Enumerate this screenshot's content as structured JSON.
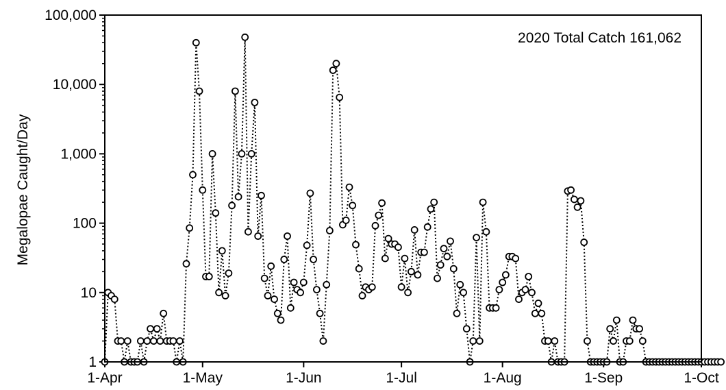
{
  "chart_data": {
    "type": "line",
    "title": "",
    "xlabel": "",
    "ylabel": "Megalopae Caught/Day",
    "y_scale": "log",
    "ylim": [
      1,
      100000
    ],
    "xlim": [
      "2020-04-01",
      "2020-10-01"
    ],
    "grid": false,
    "line_style": "dotted",
    "marker": "open-circle",
    "annotation": "2020 Total Catch 161,062",
    "x_ticks": [
      "1-Apr",
      "1-May",
      "1-Jun",
      "1-Jul",
      "1-Aug",
      "1-Sep",
      "1-Oct"
    ],
    "y_ticks": [
      "1",
      "10",
      "100",
      "1,000",
      "10,000",
      "100,000"
    ],
    "series": [
      {
        "start_date": "2020-04-01",
        "values": [
          1,
          10,
          9,
          8,
          2,
          2,
          1,
          2,
          1,
          1,
          1,
          2,
          1,
          2,
          3,
          2,
          3,
          2,
          5,
          2,
          2,
          2,
          1,
          2,
          1,
          26,
          85,
          500,
          40000,
          8000,
          300,
          17,
          17,
          1000,
          140,
          10,
          40,
          9,
          19,
          180,
          8000,
          240,
          1000,
          48000,
          75,
          1000,
          5500,
          65,
          250,
          16,
          9,
          24,
          8,
          5,
          4,
          30,
          65,
          6,
          14,
          11,
          10,
          14,
          48,
          270,
          30,
          11,
          5,
          2,
          13,
          78,
          16000,
          20000,
          6500,
          95,
          110,
          330,
          180,
          49,
          22,
          9,
          12,
          11,
          12,
          92,
          130,
          195,
          31,
          60,
          50,
          50,
          45,
          12,
          31,
          10,
          20,
          80,
          18,
          38,
          38,
          88,
          160,
          200,
          16,
          25,
          43,
          33,
          55,
          22,
          5,
          13,
          10,
          3,
          1,
          2,
          62,
          2,
          200,
          75,
          6,
          6,
          6,
          11,
          14,
          18,
          33,
          33,
          31,
          8,
          10,
          11,
          17,
          10,
          5,
          7,
          5,
          2,
          2,
          1,
          2,
          1,
          1,
          1,
          290,
          300,
          220,
          170,
          210,
          53,
          2,
          1,
          1,
          1,
          1,
          1,
          1,
          3,
          2,
          4,
          1,
          1,
          2,
          2,
          4,
          3,
          3,
          2,
          1,
          1,
          1,
          1,
          1,
          1,
          1,
          1,
          1,
          1,
          1,
          1,
          1,
          1,
          1,
          1,
          1,
          1,
          1,
          1,
          1,
          1,
          1,
          1
        ]
      }
    ]
  }
}
